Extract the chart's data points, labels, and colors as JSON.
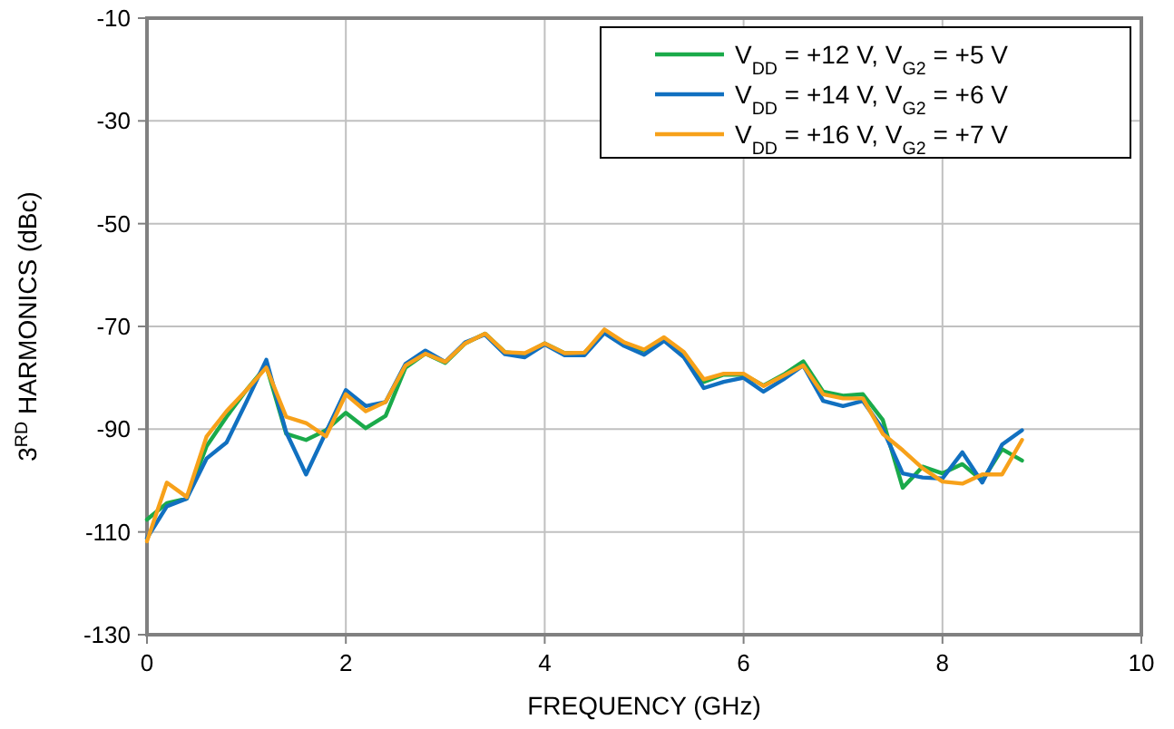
{
  "chart_data": {
    "type": "line",
    "xlabel": "FREQUENCY (GHz)",
    "ylabel": "3$^{RD}$ HARMONICS (dBc)",
    "x": [
      0,
      0.2,
      0.4,
      0.6,
      0.8,
      1.0,
      1.2,
      1.4,
      1.6,
      1.8,
      2.0,
      2.2,
      2.4,
      2.6,
      2.8,
      3.0,
      3.2,
      3.4,
      3.6,
      3.8,
      4.0,
      4.2,
      4.4,
      4.6,
      4.8,
      5.0,
      5.2,
      5.4,
      5.6,
      5.8,
      6.0,
      6.2,
      6.4,
      6.6,
      6.8,
      7.0,
      7.2,
      7.4,
      7.6,
      7.8,
      8.0,
      8.2,
      8.4,
      8.6,
      8.8
    ],
    "series": [
      {
        "name": "V$_{DD}$ = +12 V, V$_{G2}$ = +5 V",
        "color": "#1aaa4a",
        "values": [
          -107.6,
          -104.4,
          -103.5,
          -93.3,
          -87.6,
          -82.4,
          -77.7,
          -90.9,
          -92.1,
          -90.2,
          -86.8,
          -89.8,
          -87.4,
          -78,
          -75.3,
          -77.1,
          -73.3,
          -71.4,
          -75,
          -75.4,
          -73.3,
          -75.2,
          -75.1,
          -71,
          -73.3,
          -74.7,
          -72.3,
          -75.3,
          -80.8,
          -79.4,
          -79.4,
          -81.5,
          -79.4,
          -76.8,
          -82.7,
          -83.5,
          -83.2,
          -88.2,
          -101.4,
          -97.3,
          -98.6,
          -96.8,
          -100,
          -93.9,
          -96.1
        ]
      },
      {
        "name": "V$_{DD}$ = +14 V, V$_{G2}$ = +6 V",
        "color": "#1170c0",
        "values": [
          -111.2,
          -105,
          -103.5,
          -95.7,
          -92.6,
          -84.7,
          -76.5,
          -90.6,
          -98.8,
          -90.6,
          -82.4,
          -85.5,
          -84.7,
          -77.3,
          -74.7,
          -76.9,
          -73.1,
          -71.6,
          -75.4,
          -76,
          -73.5,
          -75.6,
          -75.6,
          -71.3,
          -73.8,
          -75.5,
          -72.8,
          -76,
          -82,
          -80.8,
          -80,
          -82.7,
          -80.3,
          -77.6,
          -84.5,
          -85.5,
          -84.5,
          -90,
          -98.6,
          -99.4,
          -99.6,
          -94.5,
          -100.4,
          -93,
          -90.2
        ]
      },
      {
        "name": "V$_{DD}$ = +16 V, V$_{G2}$ = +7 V",
        "color": "#f7a11a",
        "values": [
          -111.8,
          -100.4,
          -103.2,
          -91.4,
          -86.5,
          -82.4,
          -78,
          -87.6,
          -88.8,
          -91.4,
          -83.2,
          -86.5,
          -84.7,
          -77.6,
          -75.3,
          -76.9,
          -73.3,
          -71.4,
          -75,
          -75.2,
          -73.3,
          -75.2,
          -75.1,
          -70.6,
          -73.1,
          -74.5,
          -72.1,
          -75,
          -80.3,
          -79.2,
          -79.2,
          -81.6,
          -79.6,
          -77.6,
          -83.2,
          -84,
          -84,
          -90.9,
          -94.1,
          -97.6,
          -100.2,
          -100.6,
          -98.8,
          -98.8,
          -92.1
        ]
      }
    ],
    "xlim": [
      0,
      10
    ],
    "xticks": [
      0,
      2,
      4,
      6,
      8,
      10
    ],
    "ylim": [
      -130,
      -10
    ],
    "yticks": [
      -130,
      -110,
      -90,
      -70,
      -50,
      -30,
      -10
    ],
    "grid": true,
    "legend": "top right",
    "marker": "none",
    "line_style": "solid"
  }
}
